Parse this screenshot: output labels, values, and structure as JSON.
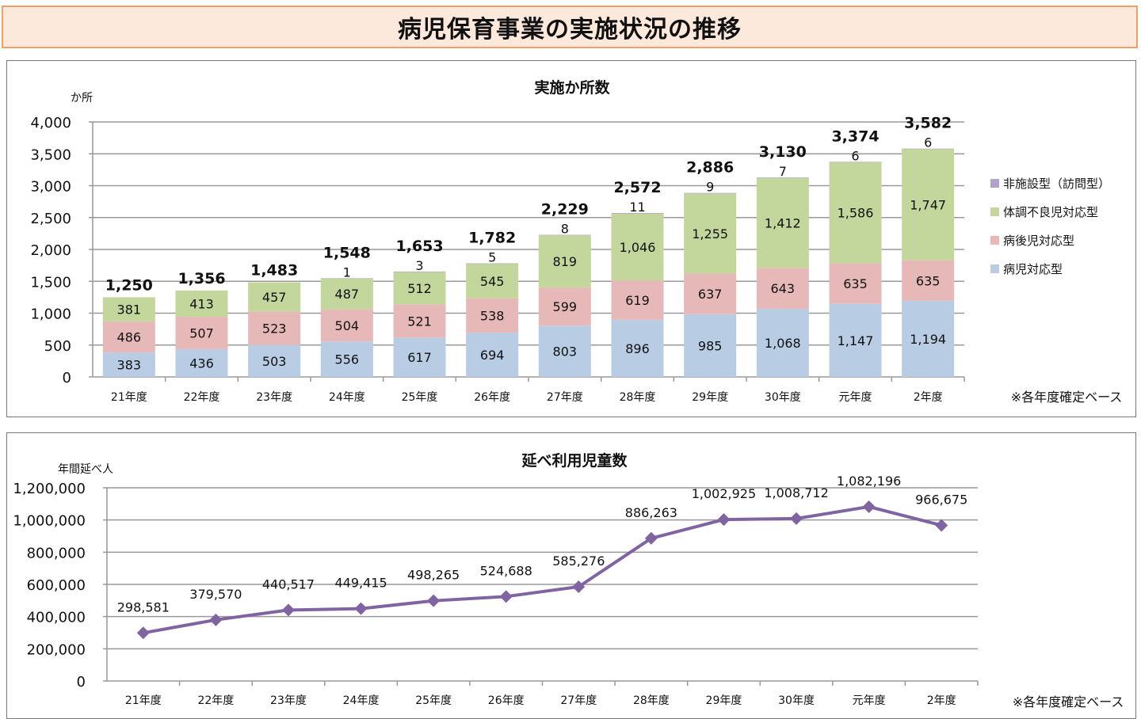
{
  "page_title": "病児保育事業の実施状況の推移",
  "chart_data": [
    {
      "type": "bar",
      "stacked": true,
      "title": "実施か所数",
      "ylabel": "か所",
      "ylim": [
        0,
        4000
      ],
      "yticks": [
        "0",
        "500",
        "1,000",
        "1,500",
        "2,000",
        "2,500",
        "3,000",
        "3,500",
        "4,000"
      ],
      "categories": [
        "21年度",
        "22年度",
        "23年度",
        "24年度",
        "25年度",
        "26年度",
        "27年度",
        "28年度",
        "29年度",
        "30年度",
        "元年度",
        "2年度"
      ],
      "series": [
        {
          "name": "病児対応型",
          "color": "#b8cce4",
          "values": [
            383,
            436,
            503,
            556,
            617,
            694,
            803,
            896,
            985,
            1068,
            1147,
            1194
          ],
          "labels": [
            "383",
            "436",
            "503",
            "556",
            "617",
            "694",
            "803",
            "896",
            "985",
            "1,068",
            "1,147",
            "1,194"
          ]
        },
        {
          "name": "病後児対応型",
          "color": "#e6b9b8",
          "values": [
            486,
            507,
            523,
            504,
            521,
            538,
            599,
            619,
            637,
            643,
            635,
            635
          ],
          "labels": [
            "486",
            "507",
            "523",
            "504",
            "521",
            "538",
            "599",
            "619",
            "637",
            "643",
            "635",
            "635"
          ]
        },
        {
          "name": "体調不良児対応型",
          "color": "#c3d69b",
          "values": [
            381,
            413,
            457,
            487,
            512,
            545,
            819,
            1046,
            1255,
            1412,
            1586,
            1747
          ],
          "labels": [
            "381",
            "413",
            "457",
            "487",
            "512",
            "545",
            "819",
            "1,046",
            "1,255",
            "1,412",
            "1,586",
            "1,747"
          ]
        },
        {
          "name": "非施設型（訪問型）",
          "color": "#b3a2c7",
          "values": [
            0,
            0,
            0,
            1,
            3,
            5,
            8,
            11,
            9,
            7,
            6,
            6
          ],
          "labels": [
            "",
            "",
            "",
            "1",
            "3",
            "5",
            "8",
            "11",
            "9",
            "7",
            "6",
            "6"
          ]
        }
      ],
      "totals": [
        "1,250",
        "1,356",
        "1,483",
        "1,548",
        "1,653",
        "1,782",
        "2,229",
        "2,572",
        "2,886",
        "3,130",
        "3,374",
        "3,582"
      ],
      "legend_position": "right",
      "note": "※各年度確定ベース",
      "grid": true
    },
    {
      "type": "line",
      "title": "延べ利用児童数",
      "ylabel": "年間延べ人",
      "ylim": [
        0,
        1200000
      ],
      "yticks": [
        "0",
        "200,000",
        "400,000",
        "600,000",
        "800,000",
        "1,000,000",
        "1,200,000"
      ],
      "categories": [
        "21年度",
        "22年度",
        "23年度",
        "24年度",
        "25年度",
        "26年度",
        "27年度",
        "28年度",
        "29年度",
        "30年度",
        "元年度",
        "2年度"
      ],
      "series": [
        {
          "name": "延べ利用児童数",
          "color": "#8064a2",
          "values": [
            298581,
            379570,
            440517,
            449415,
            498265,
            524688,
            585276,
            886263,
            1002925,
            1008712,
            1082196,
            966675
          ],
          "labels": [
            "298,581",
            "379,570",
            "440,517",
            "449,415",
            "498,265",
            "524,688",
            "585,276",
            "886,263",
            "1,002,925",
            "1,008,712",
            "1,082,196",
            "966,675"
          ]
        }
      ],
      "note": "※各年度確定ベース",
      "grid": true
    }
  ]
}
